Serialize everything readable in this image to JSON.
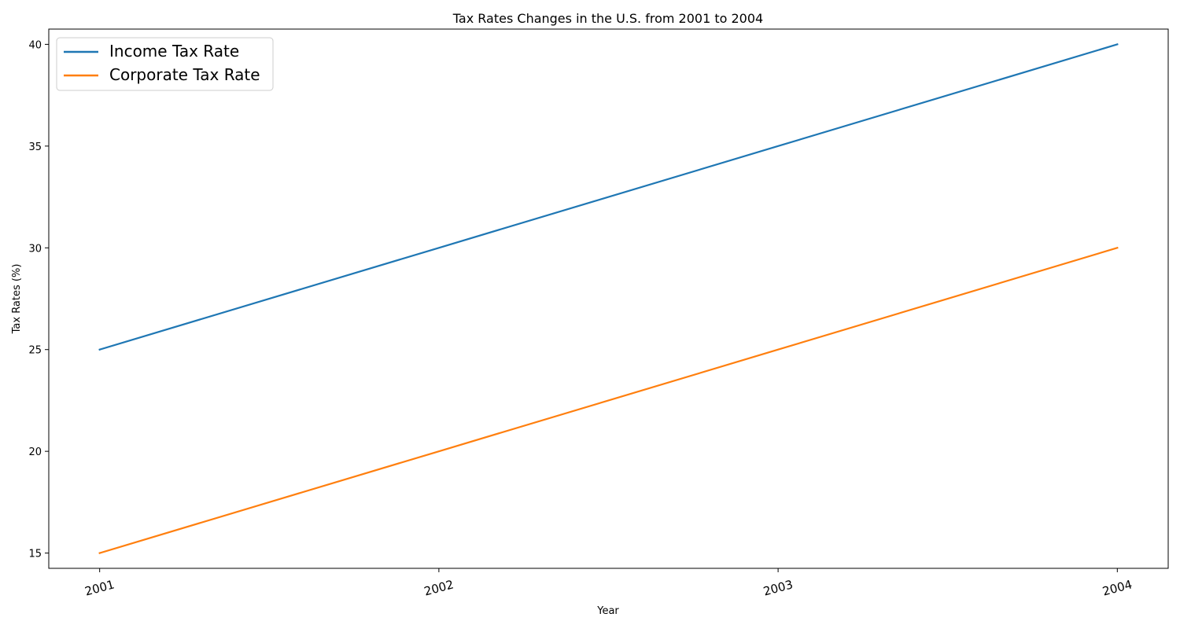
{
  "chart_data": {
    "type": "line",
    "title": "Tax Rates Changes in the U.S. from 2001 to 2004",
    "xlabel": "Year",
    "ylabel": "Tax Rates (%)",
    "x": [
      "2001",
      "2002",
      "2003",
      "2004"
    ],
    "series": [
      {
        "name": "Income Tax Rate",
        "values": [
          25,
          30,
          35,
          40
        ],
        "color": "#1f77b4"
      },
      {
        "name": "Corporate Tax Rate",
        "values": [
          15,
          20,
          25,
          30
        ],
        "color": "#ff7f0e"
      }
    ],
    "ylim": [
      14.25,
      40.75
    ],
    "yticks": [
      15,
      20,
      25,
      30,
      35,
      40
    ],
    "grid": false,
    "legend_position": "top-left"
  }
}
